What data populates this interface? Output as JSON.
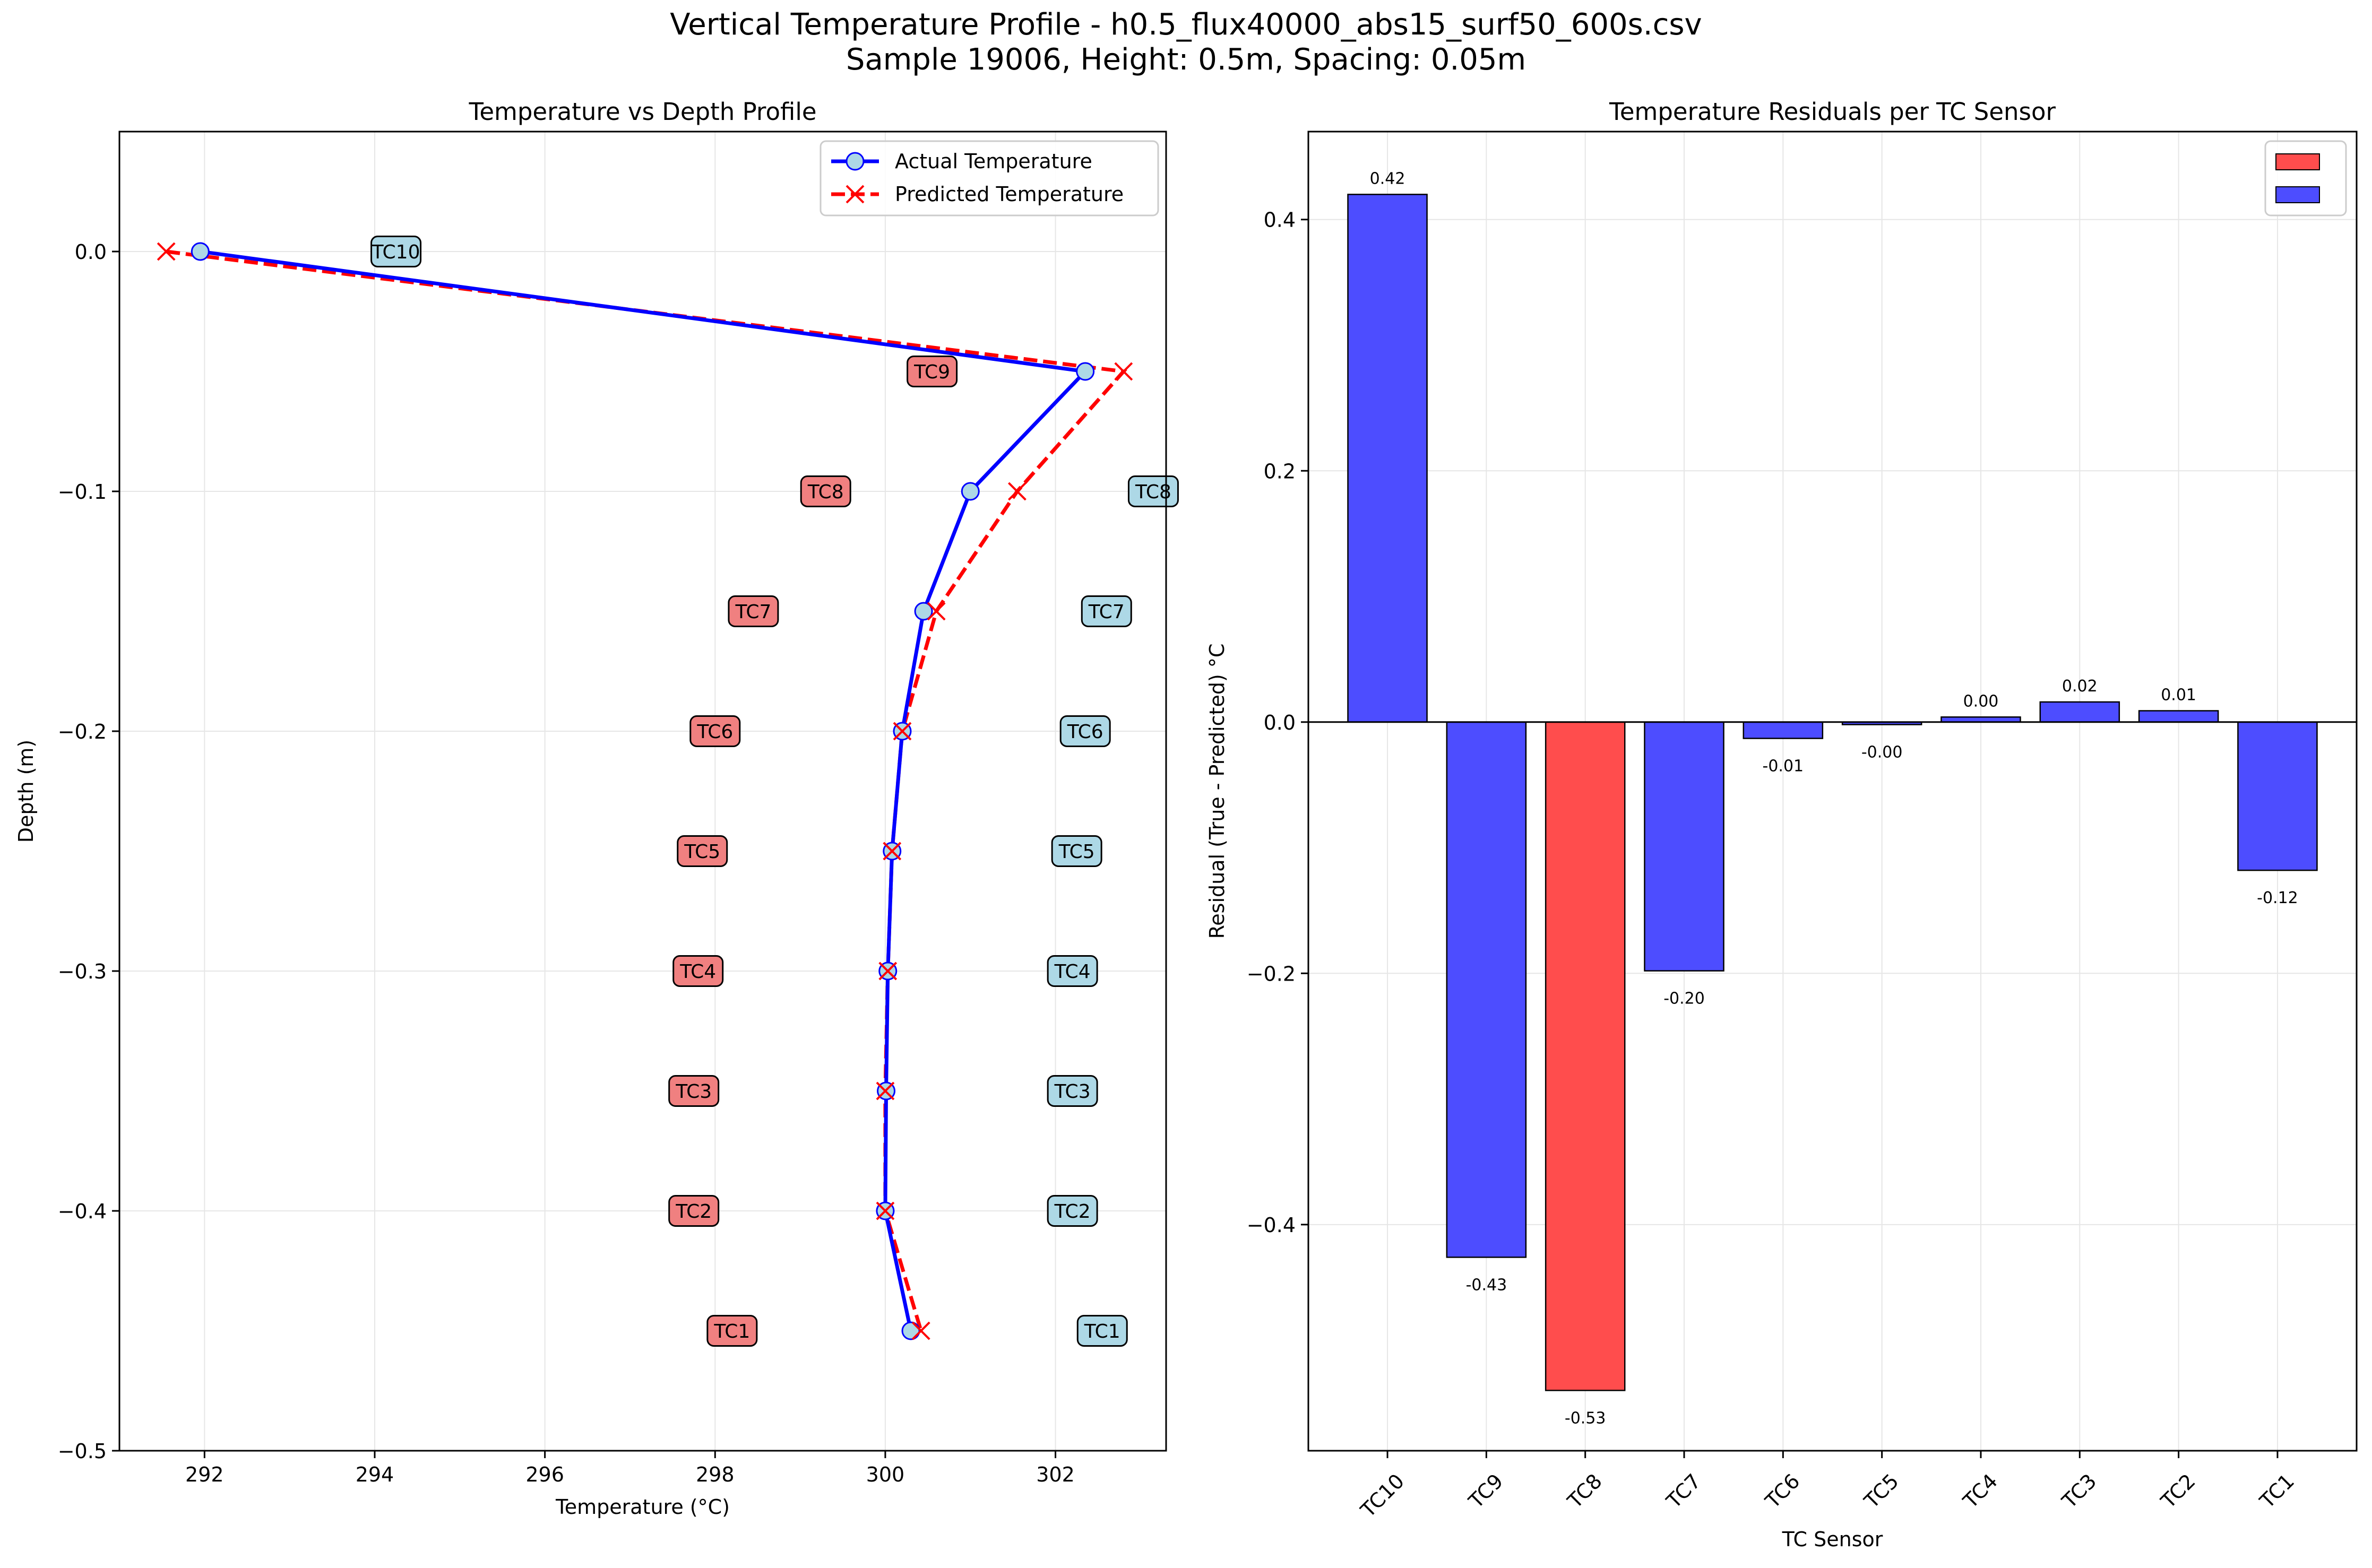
{
  "figure": {
    "title_line1": "Vertical Temperature Profile - h0.5_flux40000_abs15_surf50_600s.csv",
    "title_line2": "Sample 19006, Height: 0.5m, Spacing: 0.05m"
  },
  "colors": {
    "actual": "#0000ff",
    "predicted": "#ff0000",
    "marker_fill": "#add8e6",
    "label_red": "#f08080",
    "label_blue": "#add8e6",
    "bar_red": "#ff4d4d",
    "bar_blue": "#4d4dff",
    "grid": "#e6e6e6"
  },
  "chart_data": [
    {
      "type": "line",
      "title": "Temperature vs Depth Profile",
      "xlabel": "Temperature (°C)",
      "ylabel": "Depth (m)",
      "xlim": [
        291.0,
        303.3
      ],
      "ylim": [
        -0.5,
        0.05
      ],
      "xticks": [
        292,
        294,
        296,
        298,
        300,
        302
      ],
      "yticks": [
        0.0,
        -0.1,
        -0.2,
        -0.3,
        -0.4,
        -0.5
      ],
      "xtick_labels": [
        "292",
        "294",
        "296",
        "298",
        "300",
        "302"
      ],
      "ytick_labels": [
        "0.0",
        "−0.1",
        "−0.2",
        "−0.3",
        "−0.4",
        "−0.5"
      ],
      "grid": true,
      "legend_position": "top-right",
      "series": [
        {
          "name": "Actual Temperature",
          "style": "solid-circle",
          "points": [
            [
              291.95,
              0.0
            ],
            [
              302.35,
              -0.05
            ],
            [
              301.0,
              -0.1
            ],
            [
              300.45,
              -0.15
            ],
            [
              300.2,
              -0.2
            ],
            [
              300.08,
              -0.25
            ],
            [
              300.03,
              -0.3
            ],
            [
              300.01,
              -0.35
            ],
            [
              300.0,
              -0.4
            ],
            [
              300.3,
              -0.45
            ]
          ]
        },
        {
          "name": "Predicted Temperature",
          "style": "dashed-x",
          "points": [
            [
              291.55,
              0.0
            ],
            [
              302.8,
              -0.05
            ],
            [
              301.55,
              -0.1
            ],
            [
              300.6,
              -0.15
            ],
            [
              300.2,
              -0.2
            ],
            [
              300.08,
              -0.25
            ],
            [
              300.03,
              -0.3
            ],
            [
              300.0,
              -0.35
            ],
            [
              300.0,
              -0.4
            ],
            [
              300.42,
              -0.45
            ]
          ]
        }
      ],
      "sensor_labels": [
        {
          "text": "TC10",
          "x": 294.25,
          "y": 0.0,
          "color": "blue"
        },
        {
          "text": "TC9",
          "x": 300.55,
          "y": -0.05,
          "color": "red"
        },
        {
          "text": "TC8",
          "x": 299.3,
          "y": -0.1,
          "color": "red"
        },
        {
          "text": "TC8",
          "x": 303.15,
          "y": -0.1,
          "color": "blue"
        },
        {
          "text": "TC7",
          "x": 298.45,
          "y": -0.15,
          "color": "red"
        },
        {
          "text": "TC7",
          "x": 302.6,
          "y": -0.15,
          "color": "blue"
        },
        {
          "text": "TC6",
          "x": 298.0,
          "y": -0.2,
          "color": "red"
        },
        {
          "text": "TC6",
          "x": 302.35,
          "y": -0.2,
          "color": "blue"
        },
        {
          "text": "TC5",
          "x": 297.85,
          "y": -0.25,
          "color": "red"
        },
        {
          "text": "TC5",
          "x": 302.25,
          "y": -0.25,
          "color": "blue"
        },
        {
          "text": "TC4",
          "x": 297.8,
          "y": -0.3,
          "color": "red"
        },
        {
          "text": "TC4",
          "x": 302.2,
          "y": -0.3,
          "color": "blue"
        },
        {
          "text": "TC3",
          "x": 297.75,
          "y": -0.35,
          "color": "red"
        },
        {
          "text": "TC3",
          "x": 302.2,
          "y": -0.35,
          "color": "blue"
        },
        {
          "text": "TC2",
          "x": 297.75,
          "y": -0.4,
          "color": "red"
        },
        {
          "text": "TC2",
          "x": 302.2,
          "y": -0.4,
          "color": "blue"
        },
        {
          "text": "TC1",
          "x": 298.2,
          "y": -0.45,
          "color": "red"
        },
        {
          "text": "TC1",
          "x": 302.55,
          "y": -0.45,
          "color": "blue"
        }
      ]
    },
    {
      "type": "bar",
      "title": "Temperature Residuals per TC Sensor",
      "xlabel": "TC Sensor",
      "ylabel": "Residual (True - Predicted) °C",
      "ylim": [
        -0.58,
        0.47
      ],
      "yticks": [
        0.4,
        0.2,
        0.0,
        -0.2,
        -0.4
      ],
      "ytick_labels": [
        "0.4",
        "0.2",
        "0.0",
        "−0.2",
        "−0.4"
      ],
      "grid": true,
      "legend_position": "top-right",
      "legend_entries": [
        "",
        ""
      ],
      "categories": [
        "TC10",
        "TC9",
        "TC8",
        "TC7",
        "TC6",
        "TC5",
        "TC4",
        "TC3",
        "TC2",
        "TC1"
      ],
      "values": [
        0.42,
        -0.426,
        -0.532,
        -0.198,
        -0.013,
        -0.002,
        0.004,
        0.016,
        0.009,
        -0.118
      ],
      "value_labels": [
        "0.42",
        "-0.43",
        "-0.53",
        "-0.20",
        "-0.01",
        "-0.00",
        "0.00",
        "0.02",
        "0.01",
        "-0.12"
      ],
      "bar_colors": [
        "blue",
        "blue",
        "red",
        "blue",
        "blue",
        "blue",
        "blue",
        "blue",
        "blue",
        "blue"
      ]
    }
  ]
}
